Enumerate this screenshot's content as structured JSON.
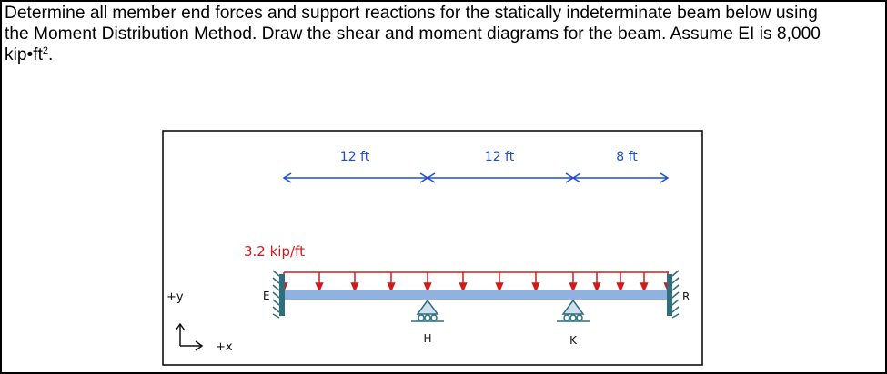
{
  "problem": {
    "line1": "Determine all member end forces and support reactions for the statically indeterminate beam below using",
    "line2": "the Moment Distribution Method.  Draw the shear and moment diagrams for the beam.  Assume EI is 8,000",
    "line3_prefix": "kip•ft",
    "line3_sup": "2",
    "line3_suffix": "."
  },
  "figure": {
    "spans": [
      {
        "label": "12 ft"
      },
      {
        "label": "12 ft"
      },
      {
        "label": "8 ft"
      }
    ],
    "load_label": "3.2 kip/ft",
    "points": {
      "E": "E",
      "H": "H",
      "K": "K",
      "R": "R"
    },
    "axes": {
      "y": "+y",
      "x": "+x"
    },
    "colors": {
      "dimension": "#1f4fd1",
      "load": "#d11a1a",
      "beam": "#8fb3de",
      "wall": "#2e6f7e"
    }
  }
}
